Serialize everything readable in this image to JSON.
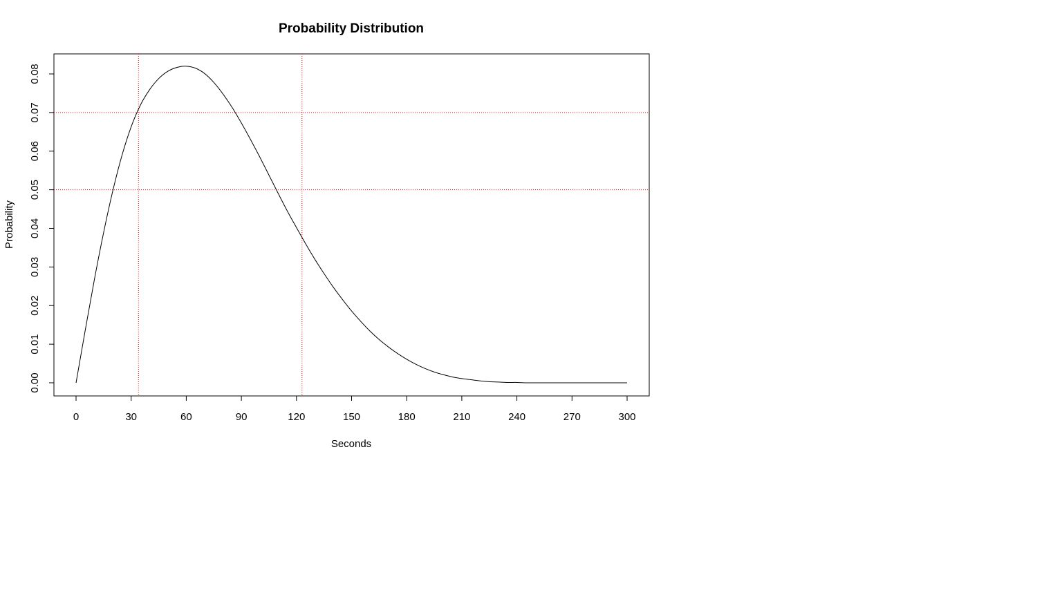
{
  "chart_data": {
    "type": "line",
    "title": "Probability Distribution",
    "xlabel": "Seconds",
    "ylabel": "Probability",
    "xlim": [
      0,
      300
    ],
    "ylim": [
      0,
      0.08
    ],
    "x_ticks": [
      "0",
      "30",
      "60",
      "90",
      "120",
      "150",
      "180",
      "210",
      "240",
      "270",
      "300"
    ],
    "y_ticks": [
      "0.00",
      "0.01",
      "0.02",
      "0.03",
      "0.04",
      "0.05",
      "0.06",
      "0.07",
      "0.08"
    ],
    "grid": false,
    "legend": "none",
    "series": [
      {
        "color": "#000000",
        "x": [
          0,
          5,
          10,
          15,
          20,
          25,
          30,
          35,
          40,
          45,
          50,
          55,
          60,
          65,
          70,
          75,
          80,
          85,
          90,
          95,
          100,
          105,
          110,
          115,
          120,
          125,
          130,
          135,
          140,
          145,
          150,
          155,
          160,
          165,
          170,
          175,
          180,
          185,
          190,
          195,
          200,
          205,
          210,
          215,
          220,
          225,
          230,
          235,
          240,
          245,
          250,
          255,
          260,
          265,
          270,
          275,
          280,
          285,
          290,
          295,
          300
        ],
        "y": [
          0.0,
          0.0136,
          0.0268,
          0.0389,
          0.0497,
          0.0589,
          0.0663,
          0.0719,
          0.0759,
          0.0788,
          0.0807,
          0.0817,
          0.082,
          0.0815,
          0.0801,
          0.0778,
          0.0748,
          0.0713,
          0.0673,
          0.063,
          0.0585,
          0.0538,
          0.0491,
          0.0445,
          0.0402,
          0.036,
          0.032,
          0.0283,
          0.0248,
          0.0216,
          0.0186,
          0.0159,
          0.0134,
          0.0112,
          0.0093,
          0.0076,
          0.0061,
          0.0048,
          0.0037,
          0.0028,
          0.0021,
          0.0015,
          0.0011,
          0.0008,
          0.0005,
          0.0003,
          0.0002,
          0.0001,
          0.0001,
          0.0,
          0.0,
          0.0,
          0.0,
          0.0,
          0.0,
          0.0,
          0.0,
          0.0,
          0.0,
          0.0,
          0.0
        ]
      }
    ],
    "reference_lines": [
      {
        "color": "#ff0000",
        "style": "dotted",
        "x": 34,
        "y": 0.07
      },
      {
        "color": "#ff0000",
        "style": "dotted",
        "x": 123,
        "y": 0.05
      }
    ]
  }
}
